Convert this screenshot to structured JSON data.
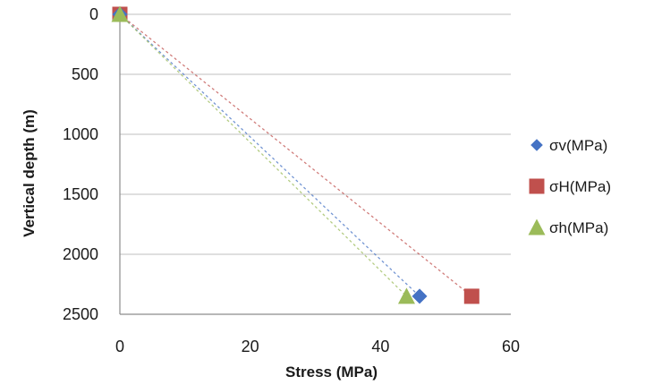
{
  "chart_data": {
    "type": "scatter",
    "xlabel": "Stress (MPa)",
    "ylabel": "Vertical depth (m)",
    "xlim": [
      0,
      60
    ],
    "ylim": [
      0,
      2500
    ],
    "y_inverted": true,
    "x_ticks": [
      0,
      20,
      40,
      60
    ],
    "y_ticks": [
      0,
      500,
      1000,
      1500,
      2000,
      2500
    ],
    "grid": "horizontal",
    "legend_position": "right",
    "trendlines": "dashed linear",
    "series": [
      {
        "name": "σv(MPa)",
        "marker": "diamond",
        "color": "#4472C4",
        "x": [
          0,
          46
        ],
        "y": [
          0,
          2350
        ]
      },
      {
        "name": "σH(MPa)",
        "marker": "square",
        "color": "#C0504D",
        "x": [
          0,
          54
        ],
        "y": [
          0,
          2350
        ]
      },
      {
        "name": "σh(MPa)",
        "marker": "triangle",
        "color": "#9BBB59",
        "x": [
          0,
          44
        ],
        "y": [
          0,
          2350
        ]
      }
    ]
  }
}
